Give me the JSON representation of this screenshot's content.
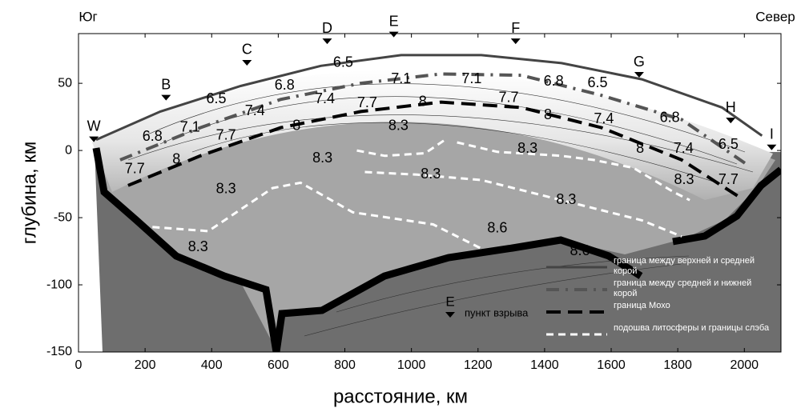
{
  "chart_data": {
    "type": "section",
    "left_label": "Юг",
    "right_label": "Север",
    "xlabel": "расстояние, км",
    "ylabel": "глубина, км",
    "xlim": [
      0,
      2110
    ],
    "ylim": [
      -150,
      87
    ],
    "xticks": [
      0,
      200,
      400,
      600,
      800,
      1000,
      1200,
      1400,
      1600,
      1800,
      2000
    ],
    "yticks": [
      -150,
      -100,
      -50,
      0,
      50
    ],
    "shotpoints": {
      "names": [
        "W",
        "B",
        "C",
        "D",
        "E",
        "F",
        "G",
        "H",
        "I"
      ],
      "x": [
        46,
        263,
        506,
        747,
        947,
        1313,
        1684,
        1959,
        2082
      ],
      "y": [
        8,
        39,
        65,
        81,
        86,
        81,
        56,
        22,
        2
      ]
    },
    "shotpoint_legend": {
      "symbol": "E",
      "label": "пункт взрыва"
    },
    "series": [
      {
        "name": "граница между верхней и средней корой",
        "color": "#444444",
        "linestyle": "solid",
        "x": [
          53,
          246,
          487,
          728,
          969,
          1210,
          1451,
          1692,
          1933,
          2053
        ],
        "values": [
          8,
          29,
          48,
          63,
          71,
          71,
          65,
          53,
          32,
          11
        ]
      },
      {
        "name": "граница между средней и нижней корой",
        "color": "#555555",
        "linestyle": "dashdot",
        "x": [
          125,
          366,
          607,
          848,
          1089,
          1330,
          1571,
          1812,
          2005
        ],
        "values": [
          -7,
          17,
          38,
          50,
          57,
          56,
          41,
          23,
          -10
        ]
      },
      {
        "name": "граница Мохо",
        "color": "#000000",
        "linestyle": "dashed",
        "x": [
          149,
          366,
          607,
          848,
          1089,
          1330,
          1571,
          1812,
          1981
        ],
        "values": [
          -26,
          -4,
          17,
          29,
          36,
          32,
          17,
          -7,
          -34
        ]
      },
      {
        "name": "подошва литосферы и границы слэба",
        "color": "#ffffff",
        "linestyle": "dotted",
        "x": [
          222,
          390,
          583,
          667,
          824,
          1065,
          1210,
          null,
          836,
          920,
          1041,
          1101,
          null,
          1137,
          1258,
          1451,
          1547,
          1667,
          1788,
          1836,
          null,
          860,
          1017,
          1210,
          1451,
          1692,
          1812
        ],
        "values": [
          -57,
          -60,
          -28,
          -24,
          -46,
          -55,
          -73,
          null,
          0,
          -4,
          -2,
          8,
          null,
          6,
          -1,
          -4,
          -7,
          -13,
          -31,
          -37,
          null,
          -16,
          -18,
          -22,
          -37,
          -52,
          -64
        ]
      }
    ],
    "contour_labels": {
      "values": [
        6.5,
        6.5,
        6.5,
        6.5,
        6.8,
        6.8,
        6.8,
        6.8,
        7.1,
        7.1,
        7.1,
        7.4,
        7.4,
        7.4,
        7.4,
        7.7,
        7.7,
        7.7,
        7.7,
        7.7,
        8,
        8,
        8,
        8,
        8,
        8.3,
        8.3,
        8.3,
        8.3,
        8.3,
        8.3,
        8.3,
        8.3,
        8.6,
        8.6
      ],
      "x": [
        795,
        414,
        1559,
        1952,
        619,
        1427,
        222,
        1776,
        969,
        1181,
        335,
        530,
        740,
        1578,
        1817,
        169,
        443,
        867,
        1292,
        1952,
        294,
        655,
        1034,
        1410,
        1687,
        961,
        733,
        443,
        359,
        1058,
        1349,
        1465,
        1819,
        1258,
        1506
      ],
      "y": [
        65,
        38,
        50,
        4,
        48,
        51,
        10,
        24,
        53,
        53,
        17,
        29,
        38,
        23,
        1,
        -14,
        11,
        35,
        39,
        -22,
        -7,
        18,
        36,
        26,
        1,
        18,
        -6,
        -29,
        -72,
        -18,
        1,
        -37,
        -22,
        -58,
        -75
      ]
    }
  }
}
